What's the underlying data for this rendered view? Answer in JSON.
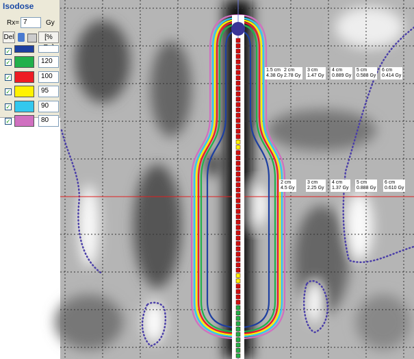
{
  "panel": {
    "title": "Isodose",
    "rx_label": "Rx=",
    "rx_value": "7",
    "rx_unit": "Gy",
    "del_button": "Del",
    "percent_button": "[% Rx]"
  },
  "isodose_levels": [
    {
      "value": 120,
      "color": "#22b04a"
    },
    {
      "value": 100,
      "color": "#ee1c24"
    },
    {
      "value": 95,
      "color": "#fff200"
    },
    {
      "value": 90,
      "color": "#33c8ee"
    },
    {
      "value": 80,
      "color": "#d070c0"
    }
  ],
  "dose_labels": {
    "row1": [
      {
        "distance": "1.5 cm",
        "dose": "4.38 Gy"
      },
      {
        "distance": "2 cm",
        "dose": "2.78 Gy"
      },
      {
        "distance": "3 cm",
        "dose": "1.47 Gy"
      },
      {
        "distance": "4 cm",
        "dose": "0.889 Gy"
      },
      {
        "distance": "5 cm",
        "dose": "0.588 Gy"
      },
      {
        "distance": "6 cm",
        "dose": "0.414 Gy"
      }
    ],
    "row2": [
      {
        "distance": "2 cm",
        "dose": "4.5 Gy"
      },
      {
        "distance": "3 cm",
        "dose": "2.25 Gy"
      },
      {
        "distance": "4 cm",
        "dose": "1.37 Gy"
      },
      {
        "distance": "5 cm",
        "dose": "0.888 Gy"
      },
      {
        "distance": "6 cm",
        "dose": "0.610 Gy"
      }
    ]
  }
}
